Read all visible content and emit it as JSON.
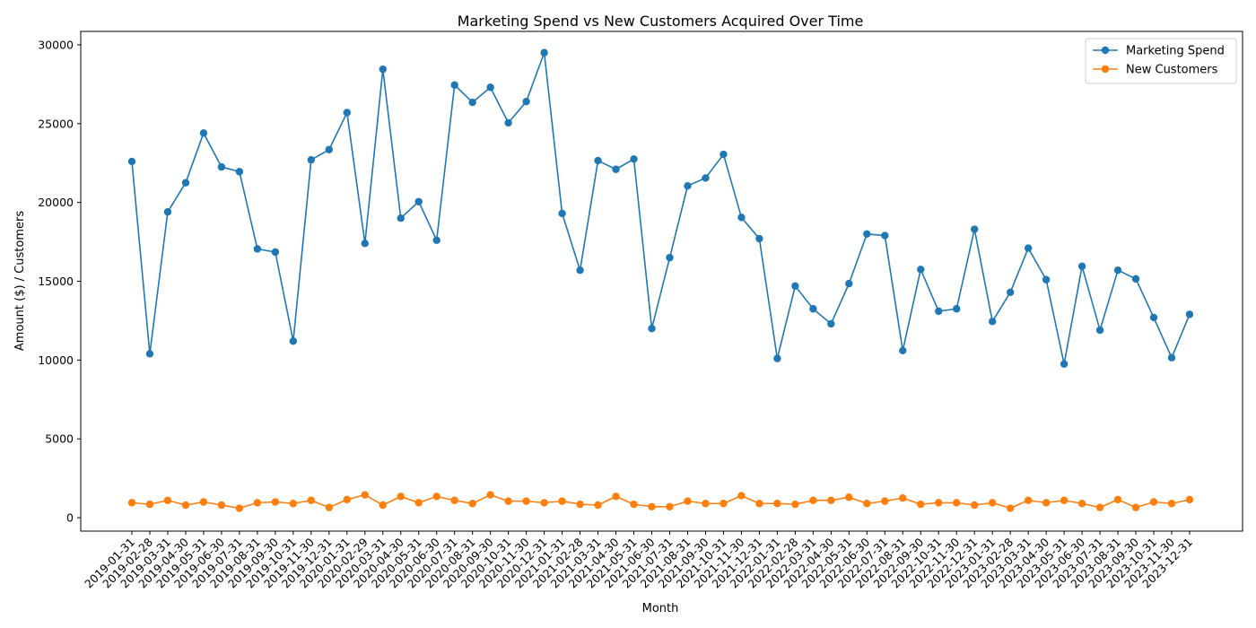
{
  "chart_data": {
    "type": "line",
    "title": "Marketing Spend vs New Customers Acquired Over Time",
    "xlabel": "Month",
    "ylabel": "Amount ($) / Customers",
    "ylim": [
      -850,
      30850
    ],
    "yticks": [
      0,
      5000,
      10000,
      15000,
      20000,
      25000,
      30000
    ],
    "grid": false,
    "legend": "top-right",
    "x": [
      "2019-01-31",
      "2019-02-28",
      "2019-03-31",
      "2019-04-30",
      "2019-05-31",
      "2019-06-30",
      "2019-07-31",
      "2019-08-31",
      "2019-09-30",
      "2019-10-31",
      "2019-11-30",
      "2019-12-31",
      "2020-01-31",
      "2020-02-29",
      "2020-03-31",
      "2020-04-30",
      "2020-05-31",
      "2020-06-30",
      "2020-07-31",
      "2020-08-31",
      "2020-09-30",
      "2020-10-31",
      "2020-11-30",
      "2020-12-31",
      "2021-01-31",
      "2021-02-28",
      "2021-03-31",
      "2021-04-30",
      "2021-05-31",
      "2021-06-30",
      "2021-07-31",
      "2021-08-31",
      "2021-09-30",
      "2021-10-31",
      "2021-11-30",
      "2021-12-31",
      "2022-01-31",
      "2022-02-28",
      "2022-03-31",
      "2022-04-30",
      "2022-05-31",
      "2022-06-30",
      "2022-07-31",
      "2022-08-31",
      "2022-09-30",
      "2022-10-31",
      "2022-11-30",
      "2022-12-31",
      "2023-01-31",
      "2023-02-28",
      "2023-03-31",
      "2023-04-30",
      "2023-05-31",
      "2023-06-30",
      "2023-07-31",
      "2023-08-31",
      "2023-09-30",
      "2023-10-31",
      "2023-11-30",
      "2023-12-31"
    ],
    "series": [
      {
        "name": "Marketing Spend",
        "color": "#1f77b4",
        "values": [
          22600,
          10400,
          19400,
          21250,
          24400,
          22250,
          21950,
          17050,
          16850,
          11200,
          22700,
          23350,
          25700,
          17400,
          28450,
          19000,
          20050,
          17600,
          27450,
          26350,
          27300,
          25050,
          26400,
          29500,
          19300,
          15700,
          22650,
          22100,
          22750,
          12000,
          16500,
          21050,
          21550,
          23050,
          19050,
          17700,
          10100,
          14700,
          13250,
          12300,
          14850,
          18000,
          17900,
          10600,
          15750,
          13100,
          13250,
          18300,
          12450,
          14300,
          17100,
          15100,
          9750,
          15950,
          11900,
          15700,
          15150,
          12700,
          10150,
          12900
        ]
      },
      {
        "name": "New Customers",
        "color": "#ff7f0e",
        "values": [
          950,
          850,
          1100,
          800,
          1000,
          800,
          600,
          950,
          1000,
          900,
          1100,
          650,
          1150,
          1450,
          800,
          1350,
          950,
          1350,
          1100,
          900,
          1450,
          1050,
          1050,
          950,
          1050,
          850,
          800,
          1350,
          850,
          700,
          700,
          1050,
          900,
          900,
          1400,
          900,
          900,
          850,
          1100,
          1100,
          1300,
          900,
          1050,
          1250,
          850,
          950,
          950,
          800,
          950,
          600,
          1100,
          950,
          1100,
          900,
          650,
          1150,
          650,
          1000,
          900,
          1150
        ]
      }
    ]
  }
}
